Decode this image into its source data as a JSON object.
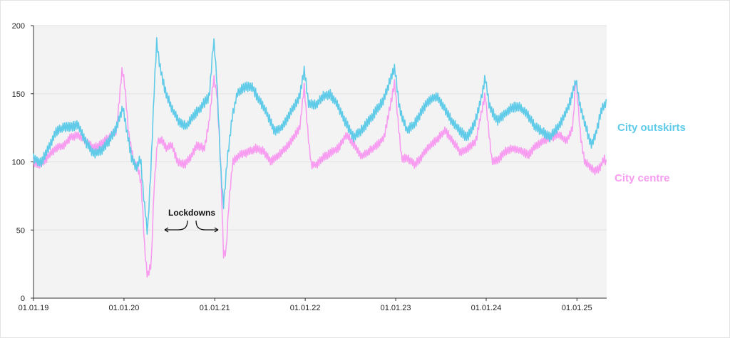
{
  "chart_data": {
    "type": "line",
    "title": "",
    "xlabel": "",
    "ylabel": "",
    "xlim": [
      "2019-01-01",
      "2025-05-01"
    ],
    "ylim": [
      0,
      200
    ],
    "y_ticks": [
      0,
      50,
      100,
      150,
      200
    ],
    "x_ticks": [
      {
        "date": "2019-01-01",
        "label": "01.01.19"
      },
      {
        "date": "2020-01-01",
        "label": "01.01.20"
      },
      {
        "date": "2021-01-01",
        "label": "01.01.21"
      },
      {
        "date": "2022-01-01",
        "label": "01.01.22"
      },
      {
        "date": "2023-01-01",
        "label": "01.01.23"
      },
      {
        "date": "2024-01-01",
        "label": "01.01.24"
      },
      {
        "date": "2025-01-01",
        "label": "01.01.25"
      }
    ],
    "grid": true,
    "legend": "inline-right",
    "annotation": {
      "text": "Lockdowns"
    },
    "series": [
      {
        "name": "City outskirts",
        "color": "#5fcbe8",
        "points": [
          [
            "2019-01-01",
            103
          ],
          [
            "2019-02-01",
            99
          ],
          [
            "2019-03-01",
            110
          ],
          [
            "2019-04-01",
            122
          ],
          [
            "2019-05-01",
            125
          ],
          [
            "2019-06-01",
            126
          ],
          [
            "2019-07-01",
            127
          ],
          [
            "2019-08-01",
            114
          ],
          [
            "2019-09-01",
            106
          ],
          [
            "2019-10-01",
            108
          ],
          [
            "2019-11-01",
            115
          ],
          [
            "2019-12-01",
            125
          ],
          [
            "2019-12-28",
            140
          ],
          [
            "2020-01-10",
            125
          ],
          [
            "2020-02-01",
            103
          ],
          [
            "2020-02-20",
            96
          ],
          [
            "2020-03-08",
            103
          ],
          [
            "2020-03-20",
            75
          ],
          [
            "2020-04-05",
            48
          ],
          [
            "2020-04-20",
            100
          ],
          [
            "2020-05-01",
            150
          ],
          [
            "2020-05-12",
            188
          ],
          [
            "2020-05-25",
            170
          ],
          [
            "2020-06-15",
            152
          ],
          [
            "2020-07-15",
            138
          ],
          [
            "2020-08-15",
            128
          ],
          [
            "2020-09-10",
            126
          ],
          [
            "2020-10-05",
            133
          ],
          [
            "2020-11-05",
            140
          ],
          [
            "2020-12-10",
            148
          ],
          [
            "2020-12-28",
            190
          ],
          [
            "2021-01-10",
            160
          ],
          [
            "2021-01-25",
            95
          ],
          [
            "2021-02-05",
            68
          ],
          [
            "2021-02-20",
            100
          ],
          [
            "2021-03-10",
            130
          ],
          [
            "2021-04-01",
            150
          ],
          [
            "2021-05-01",
            155
          ],
          [
            "2021-06-01",
            155
          ],
          [
            "2021-07-01",
            145
          ],
          [
            "2021-08-01",
            135
          ],
          [
            "2021-09-01",
            122
          ],
          [
            "2021-10-01",
            126
          ],
          [
            "2021-11-01",
            136
          ],
          [
            "2021-12-10",
            148
          ],
          [
            "2021-12-28",
            168
          ],
          [
            "2022-01-15",
            142
          ],
          [
            "2022-02-15",
            142
          ],
          [
            "2022-03-15",
            148
          ],
          [
            "2022-04-10",
            150
          ],
          [
            "2022-05-10",
            142
          ],
          [
            "2022-06-10",
            130
          ],
          [
            "2022-07-15",
            118
          ],
          [
            "2022-08-15",
            123
          ],
          [
            "2022-09-15",
            130
          ],
          [
            "2022-10-15",
            138
          ],
          [
            "2022-11-15",
            146
          ],
          [
            "2022-12-28",
            170
          ],
          [
            "2023-01-15",
            140
          ],
          [
            "2023-02-15",
            123
          ],
          [
            "2023-03-15",
            127
          ],
          [
            "2023-04-15",
            137
          ],
          [
            "2023-05-15",
            145
          ],
          [
            "2023-06-15",
            148
          ],
          [
            "2023-07-15",
            140
          ],
          [
            "2023-08-15",
            130
          ],
          [
            "2023-09-15",
            123
          ],
          [
            "2023-10-15",
            118
          ],
          [
            "2023-11-15",
            128
          ],
          [
            "2023-12-10",
            145
          ],
          [
            "2023-12-28",
            162
          ],
          [
            "2024-01-15",
            140
          ],
          [
            "2024-02-15",
            130
          ],
          [
            "2024-03-15",
            135
          ],
          [
            "2024-04-15",
            140
          ],
          [
            "2024-05-15",
            140
          ],
          [
            "2024-06-15",
            135
          ],
          [
            "2024-07-15",
            126
          ],
          [
            "2024-08-15",
            122
          ],
          [
            "2024-09-15",
            118
          ],
          [
            "2024-10-15",
            125
          ],
          [
            "2024-11-15",
            135
          ],
          [
            "2024-12-10",
            147
          ],
          [
            "2024-12-28",
            160
          ],
          [
            "2025-01-15",
            140
          ],
          [
            "2025-02-15",
            120
          ],
          [
            "2025-03-01",
            112
          ],
          [
            "2025-03-20",
            122
          ],
          [
            "2025-04-10",
            138
          ],
          [
            "2025-05-01",
            144
          ]
        ]
      },
      {
        "name": "City centre",
        "color": "#f79cf0",
        "points": [
          [
            "2019-01-01",
            100
          ],
          [
            "2019-02-01",
            98
          ],
          [
            "2019-03-01",
            104
          ],
          [
            "2019-04-01",
            110
          ],
          [
            "2019-05-01",
            112
          ],
          [
            "2019-06-01",
            118
          ],
          [
            "2019-07-01",
            120
          ],
          [
            "2019-08-01",
            115
          ],
          [
            "2019-09-01",
            110
          ],
          [
            "2019-10-01",
            113
          ],
          [
            "2019-11-01",
            118
          ],
          [
            "2019-12-01",
            123
          ],
          [
            "2019-12-25",
            168
          ],
          [
            "2020-01-05",
            155
          ],
          [
            "2020-01-20",
            120
          ],
          [
            "2020-02-10",
            100
          ],
          [
            "2020-02-25",
            97
          ],
          [
            "2020-03-10",
            85
          ],
          [
            "2020-03-25",
            35
          ],
          [
            "2020-04-05",
            16
          ],
          [
            "2020-04-20",
            25
          ],
          [
            "2020-05-01",
            80
          ],
          [
            "2020-05-15",
            115
          ],
          [
            "2020-06-01",
            116
          ],
          [
            "2020-06-20",
            110
          ],
          [
            "2020-07-10",
            113
          ],
          [
            "2020-08-05",
            100
          ],
          [
            "2020-09-01",
            98
          ],
          [
            "2020-09-25",
            103
          ],
          [
            "2020-10-20",
            112
          ],
          [
            "2020-11-20",
            110
          ],
          [
            "2020-12-10",
            130
          ],
          [
            "2020-12-28",
            162
          ],
          [
            "2021-01-10",
            150
          ],
          [
            "2021-01-25",
            100
          ],
          [
            "2021-02-05",
            32
          ],
          [
            "2021-02-15",
            33
          ],
          [
            "2021-03-01",
            75
          ],
          [
            "2021-03-15",
            100
          ],
          [
            "2021-04-10",
            105
          ],
          [
            "2021-05-15",
            107
          ],
          [
            "2021-06-15",
            110
          ],
          [
            "2021-07-15",
            108
          ],
          [
            "2021-08-15",
            100
          ],
          [
            "2021-09-15",
            105
          ],
          [
            "2021-10-15",
            110
          ],
          [
            "2021-11-15",
            118
          ],
          [
            "2021-12-10",
            125
          ],
          [
            "2021-12-28",
            155
          ],
          [
            "2022-01-10",
            125
          ],
          [
            "2022-01-25",
            98
          ],
          [
            "2022-02-15",
            98
          ],
          [
            "2022-03-15",
            103
          ],
          [
            "2022-04-15",
            107
          ],
          [
            "2022-05-15",
            110
          ],
          [
            "2022-06-15",
            120
          ],
          [
            "2022-07-15",
            113
          ],
          [
            "2022-08-15",
            104
          ],
          [
            "2022-09-15",
            108
          ],
          [
            "2022-10-15",
            112
          ],
          [
            "2022-11-15",
            118
          ],
          [
            "2022-12-28",
            158
          ],
          [
            "2023-01-10",
            130
          ],
          [
            "2023-01-25",
            103
          ],
          [
            "2023-02-20",
            102
          ],
          [
            "2023-03-20",
            98
          ],
          [
            "2023-04-20",
            105
          ],
          [
            "2023-05-20",
            112
          ],
          [
            "2023-06-20",
            117
          ],
          [
            "2023-07-20",
            123
          ],
          [
            "2023-08-20",
            115
          ],
          [
            "2023-09-20",
            107
          ],
          [
            "2023-10-20",
            110
          ],
          [
            "2023-11-20",
            115
          ],
          [
            "2023-12-28",
            150
          ],
          [
            "2024-01-10",
            125
          ],
          [
            "2024-01-25",
            100
          ],
          [
            "2024-02-20",
            102
          ],
          [
            "2024-03-20",
            108
          ],
          [
            "2024-04-20",
            110
          ],
          [
            "2024-05-20",
            108
          ],
          [
            "2024-06-20",
            105
          ],
          [
            "2024-07-20",
            112
          ],
          [
            "2024-08-20",
            115
          ],
          [
            "2024-09-20",
            118
          ],
          [
            "2024-10-20",
            120
          ],
          [
            "2024-11-20",
            115
          ],
          [
            "2024-12-15",
            125
          ],
          [
            "2024-12-28",
            162
          ],
          [
            "2025-01-15",
            120
          ],
          [
            "2025-02-01",
            100
          ],
          [
            "2025-02-20",
            97
          ],
          [
            "2025-03-15",
            93
          ],
          [
            "2025-04-05",
            96
          ],
          [
            "2025-04-20",
            103
          ],
          [
            "2025-05-01",
            98
          ]
        ]
      }
    ]
  }
}
